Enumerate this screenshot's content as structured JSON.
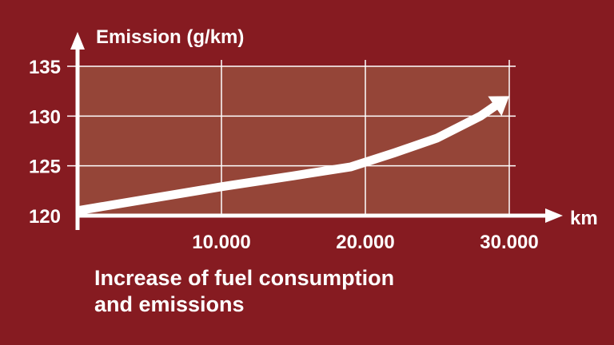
{
  "chart_data": {
    "type": "line",
    "ylabel": "Emission (g/km)",
    "xlabel": "km",
    "xlim": [
      0,
      30000
    ],
    "ylim": [
      120,
      135
    ],
    "x_ticks": [
      10000,
      20000,
      30000
    ],
    "x_tick_labels": [
      "10.000",
      "20.000",
      "30.000"
    ],
    "y_ticks": [
      120,
      125,
      130,
      135
    ],
    "y_tick_labels": [
      "120",
      "125",
      "130",
      "135"
    ],
    "grid": true,
    "series": [
      {
        "x": [
          0,
          5000,
          10000,
          15000,
          19000,
          22000,
          25000,
          28000,
          30000
        ],
        "values": [
          120.5,
          121.7,
          122.9,
          124,
          124.9,
          126.3,
          127.8,
          130,
          132
        ]
      }
    ]
  },
  "caption": {
    "line1": "Increase of fuel consumption",
    "line2": "and emissions"
  },
  "colors": {
    "background": "#861b21",
    "plot_area": "#954538",
    "foreground": "#ffffff"
  }
}
